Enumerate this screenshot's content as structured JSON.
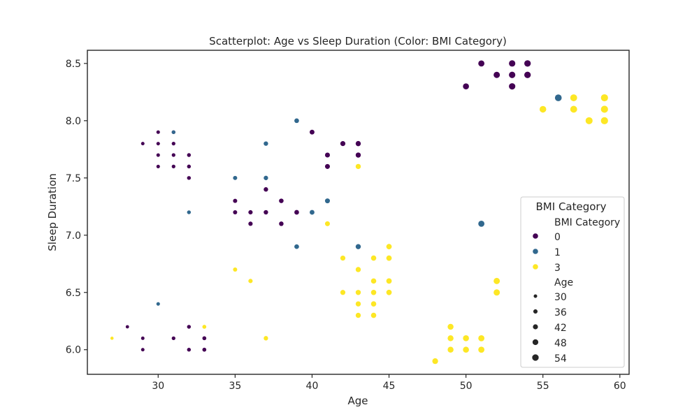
{
  "chart_data": {
    "type": "scatter",
    "title": "Scatterplot: Age vs Sleep Duration (Color: BMI Category)",
    "xlabel": "Age",
    "ylabel": "Sleep Duration",
    "xlim": [
      25.4,
      60.6
    ],
    "ylim": [
      5.785,
      8.615
    ],
    "xticks": [
      30,
      35,
      40,
      45,
      50,
      55,
      60
    ],
    "yticks": [
      6.0,
      6.5,
      7.0,
      7.5,
      8.0,
      8.5
    ],
    "xtick_labels": [
      "30",
      "35",
      "40",
      "45",
      "50",
      "55",
      "60"
    ],
    "ytick_labels": [
      "6.0",
      "6.5",
      "7.0",
      "7.5",
      "8.0",
      "8.5"
    ],
    "grid": false,
    "legend": {
      "title": "BMI Category",
      "placement": "lower-right",
      "hue_title": "BMI Category",
      "hue_entries": [
        {
          "label": "0",
          "color": "#440154"
        },
        {
          "label": "1",
          "color": "#31688e"
        },
        {
          "label": "3",
          "color": "#fde725"
        }
      ],
      "size_title": "Age",
      "size_entries": [
        {
          "label": "30",
          "value": 30
        },
        {
          "label": "36",
          "value": 36
        },
        {
          "label": "42",
          "value": 42
        },
        {
          "label": "48",
          "value": 48
        },
        {
          "label": "54",
          "value": 54
        }
      ]
    },
    "size_variable": "Age",
    "series": [
      {
        "name": "0",
        "color": "#440154",
        "points": [
          [
            28,
            6.2
          ],
          [
            29,
            6.1
          ],
          [
            29,
            6.0
          ],
          [
            29,
            7.8
          ],
          [
            30,
            7.9
          ],
          [
            30,
            7.8
          ],
          [
            30,
            7.7
          ],
          [
            30,
            7.6
          ],
          [
            31,
            7.9
          ],
          [
            31,
            7.8
          ],
          [
            31,
            7.7
          ],
          [
            31,
            7.6
          ],
          [
            31,
            6.1
          ],
          [
            32,
            7.7
          ],
          [
            32,
            7.6
          ],
          [
            32,
            7.5
          ],
          [
            32,
            6.2
          ],
          [
            32,
            6.0
          ],
          [
            33,
            6.1
          ],
          [
            33,
            6.0
          ],
          [
            35,
            7.3
          ],
          [
            35,
            7.2
          ],
          [
            36,
            7.2
          ],
          [
            36,
            7.1
          ],
          [
            37,
            7.4
          ],
          [
            37,
            7.2
          ],
          [
            38,
            7.3
          ],
          [
            38,
            7.1
          ],
          [
            39,
            7.2
          ],
          [
            40,
            7.9
          ],
          [
            41,
            7.7
          ],
          [
            41,
            7.6
          ],
          [
            42,
            7.8
          ],
          [
            43,
            7.8
          ],
          [
            43,
            7.7
          ],
          [
            50,
            8.3
          ],
          [
            51,
            8.5
          ],
          [
            52,
            8.4
          ],
          [
            53,
            8.5
          ],
          [
            53,
            8.4
          ],
          [
            53,
            8.3
          ],
          [
            54,
            8.5
          ],
          [
            54,
            8.4
          ]
        ]
      },
      {
        "name": "1",
        "color": "#31688e",
        "points": [
          [
            30,
            6.4
          ],
          [
            31,
            7.9
          ],
          [
            32,
            7.2
          ],
          [
            35,
            7.5
          ],
          [
            37,
            7.8
          ],
          [
            37,
            7.5
          ],
          [
            39,
            8.0
          ],
          [
            39,
            6.9
          ],
          [
            40,
            7.2
          ],
          [
            41,
            7.3
          ],
          [
            43,
            6.9
          ],
          [
            51,
            7.1
          ],
          [
            56,
            8.2
          ]
        ]
      },
      {
        "name": "3",
        "color": "#fde725",
        "points": [
          [
            27,
            6.1
          ],
          [
            33,
            6.2
          ],
          [
            35,
            6.7
          ],
          [
            36,
            6.6
          ],
          [
            37,
            6.1
          ],
          [
            41,
            7.1
          ],
          [
            42,
            6.8
          ],
          [
            42,
            6.5
          ],
          [
            43,
            7.6
          ],
          [
            43,
            6.7
          ],
          [
            43,
            6.5
          ],
          [
            43,
            6.4
          ],
          [
            43,
            6.3
          ],
          [
            44,
            6.8
          ],
          [
            44,
            6.6
          ],
          [
            44,
            6.5
          ],
          [
            44,
            6.4
          ],
          [
            44,
            6.3
          ],
          [
            45,
            6.9
          ],
          [
            45,
            6.8
          ],
          [
            45,
            6.6
          ],
          [
            45,
            6.5
          ],
          [
            48,
            5.9
          ],
          [
            49,
            6.2
          ],
          [
            49,
            6.1
          ],
          [
            49,
            6.0
          ],
          [
            50,
            6.1
          ],
          [
            50,
            6.0
          ],
          [
            51,
            6.1
          ],
          [
            51,
            6.0
          ],
          [
            52,
            6.6
          ],
          [
            52,
            6.5
          ],
          [
            55,
            8.1
          ],
          [
            57,
            8.2
          ],
          [
            57,
            8.1
          ],
          [
            58,
            8.0
          ],
          [
            59,
            8.2
          ],
          [
            59,
            8.1
          ],
          [
            59,
            8.0
          ]
        ]
      }
    ]
  }
}
